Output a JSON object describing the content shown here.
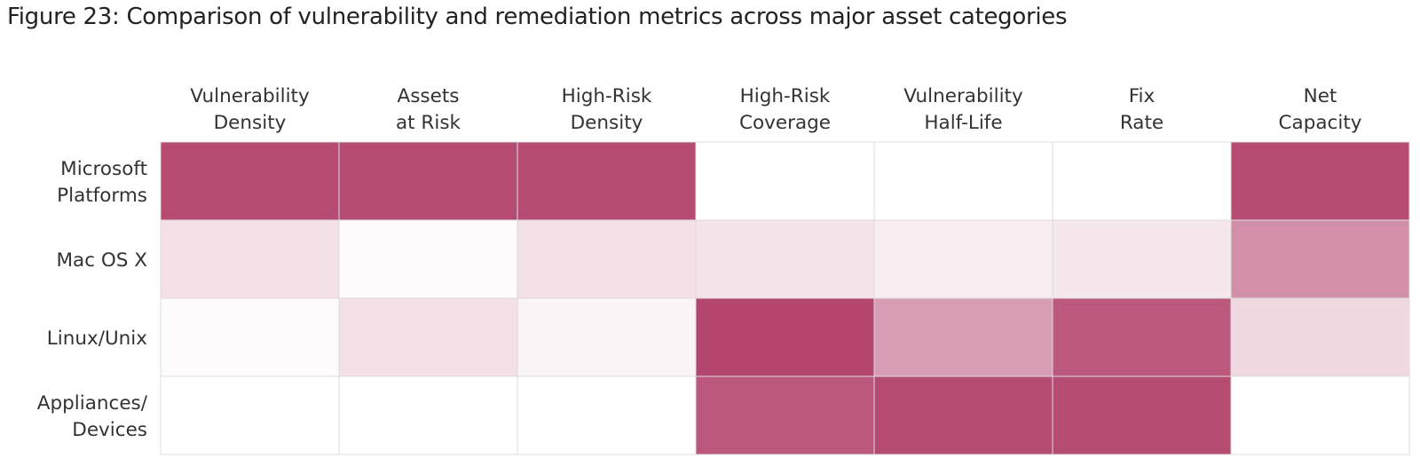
{
  "chart_data": {
    "type": "heatmap",
    "title": "Figure 23: Comparison of vulnerability and remediation metrics across major asset categories",
    "columns": [
      [
        "Vulnerability",
        "Density"
      ],
      [
        "Assets",
        "at Risk"
      ],
      [
        "High-Risk",
        "Density"
      ],
      [
        "High-Risk",
        "Coverage"
      ],
      [
        "Vulnerability",
        "Half-Life"
      ],
      [
        "Fix",
        "Rate"
      ],
      [
        "Net",
        "Capacity"
      ]
    ],
    "rows": [
      [
        "Microsoft",
        "Platforms"
      ],
      [
        "Mac OS X"
      ],
      [
        "Linux/Unix"
      ],
      [
        "Appliances/",
        "Devices"
      ]
    ],
    "values": [
      [
        0.96,
        0.96,
        0.96,
        0.0,
        0.0,
        0.0,
        0.96
      ],
      [
        0.16,
        0.02,
        0.16,
        0.15,
        0.09,
        0.13,
        0.59
      ],
      [
        0.02,
        0.16,
        0.06,
        0.99,
        0.52,
        0.89,
        0.2
      ],
      [
        0.0,
        0.0,
        0.0,
        0.89,
        0.96,
        0.96,
        0.0
      ]
    ],
    "color_scale": {
      "low": "#ffffff",
      "high": "#b3436b"
    }
  }
}
